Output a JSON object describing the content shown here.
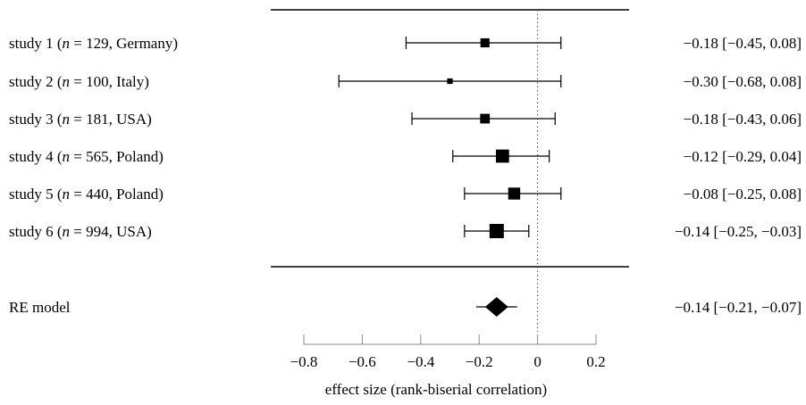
{
  "chart_data": {
    "type": "forest",
    "xlabel": "effect size (rank-biserial correlation)",
    "xlim": [
      -0.8,
      0.2
    ],
    "xticks": [
      -0.8,
      -0.6,
      -0.4,
      -0.2,
      0,
      0.2
    ],
    "xtick_labels": [
      "−0.8",
      "−0.6",
      "−0.4",
      "−0.2",
      "0",
      "0.2"
    ],
    "reference_line": 0,
    "studies": [
      {
        "label_pre": "study 1 (",
        "label_n": "n",
        "label_post": " = 129, Germany)",
        "estimate": -0.18,
        "ci_low": -0.45,
        "ci_high": 0.08,
        "weight": 0.55,
        "ci_text": "−0.18 [−0.45, 0.08]"
      },
      {
        "label_pre": "study 2 (",
        "label_n": "n",
        "label_post": " = 100, Italy)",
        "estimate": -0.3,
        "ci_low": -0.68,
        "ci_high": 0.08,
        "weight": 0.25,
        "ci_text": "−0.30 [−0.68, 0.08]"
      },
      {
        "label_pre": "study 3 (",
        "label_n": "n",
        "label_post": " = 181, USA)",
        "estimate": -0.18,
        "ci_low": -0.43,
        "ci_high": 0.06,
        "weight": 0.6,
        "ci_text": "−0.18 [−0.43, 0.06]"
      },
      {
        "label_pre": "study 4 (",
        "label_n": "n",
        "label_post": " = 565, Poland)",
        "estimate": -0.12,
        "ci_low": -0.29,
        "ci_high": 0.04,
        "weight": 0.9,
        "ci_text": "−0.12 [−0.29, 0.04]"
      },
      {
        "label_pre": "study 5 (",
        "label_n": "n",
        "label_post": " = 440, Poland)",
        "estimate": -0.08,
        "ci_low": -0.25,
        "ci_high": 0.08,
        "weight": 0.8,
        "ci_text": "−0.08 [−0.25, 0.08]"
      },
      {
        "label_pre": "study 6 (",
        "label_n": "n",
        "label_post": " = 994, USA)",
        "estimate": -0.14,
        "ci_low": -0.25,
        "ci_high": -0.03,
        "weight": 1.0,
        "ci_text": "−0.14 [−0.25, −0.03]"
      }
    ],
    "summary": {
      "label": "RE model",
      "estimate": -0.14,
      "ci_low": -0.21,
      "ci_high": -0.07,
      "ci_text": "−0.14 [−0.21, −0.07]"
    }
  }
}
